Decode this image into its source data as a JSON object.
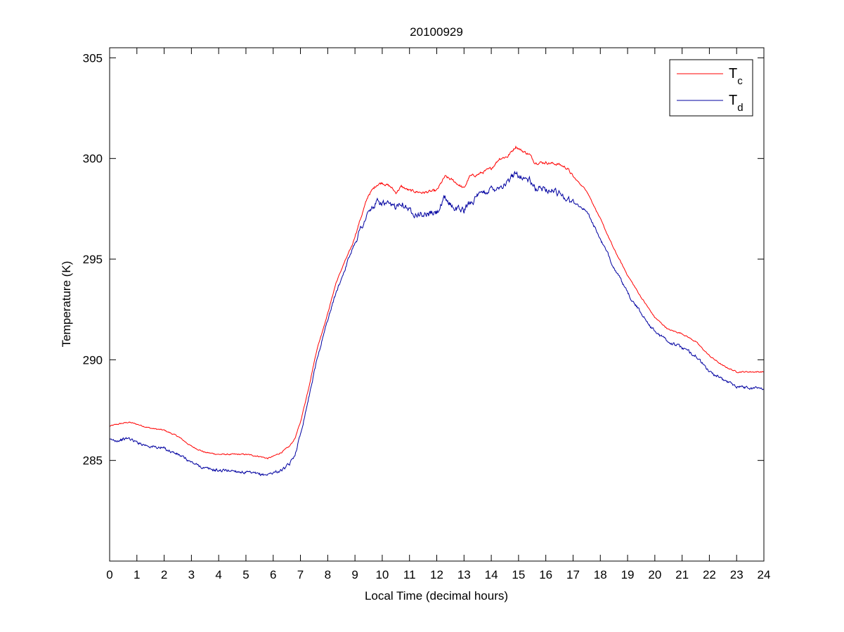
{
  "chart_data": {
    "type": "line",
    "title": "20100929",
    "xlabel": "Local Time (decimal hours)",
    "ylabel": "Temperature (K)",
    "xlim": [
      0,
      24
    ],
    "ylim": [
      280,
      305.5
    ],
    "xticks": [
      0,
      1,
      2,
      3,
      4,
      5,
      6,
      7,
      8,
      9,
      10,
      11,
      12,
      13,
      14,
      15,
      16,
      17,
      18,
      19,
      20,
      21,
      22,
      23,
      24
    ],
    "yticks": [
      285,
      290,
      295,
      300,
      305
    ],
    "grid": false,
    "legend_position": "top-right",
    "series": [
      {
        "name": "Tc",
        "name_base": "T",
        "name_sub": "c",
        "color": "#ff0000",
        "noise": 0.05,
        "x": [
          0,
          0.3,
          0.7,
          1.0,
          1.5,
          2.0,
          2.5,
          3.0,
          3.5,
          4.0,
          4.5,
          5.0,
          5.5,
          5.8,
          6.0,
          6.3,
          6.6,
          6.8,
          7.0,
          7.3,
          7.6,
          8.0,
          8.3,
          8.6,
          8.9,
          9.2,
          9.5,
          9.8,
          10.0,
          10.3,
          10.5,
          10.7,
          11.0,
          11.5,
          12.0,
          12.3,
          12.6,
          13.0,
          13.2,
          13.5,
          14.0,
          14.3,
          14.6,
          14.9,
          15.1,
          15.4,
          15.6,
          16.0,
          16.5,
          16.8,
          17.0,
          17.5,
          18.0,
          18.5,
          19.0,
          19.5,
          20.0,
          20.5,
          21.0,
          21.5,
          22.0,
          22.5,
          23.0,
          23.5,
          24.0
        ],
        "y": [
          286.7,
          286.8,
          286.9,
          286.8,
          286.6,
          286.5,
          286.2,
          285.7,
          285.4,
          285.3,
          285.3,
          285.3,
          285.2,
          285.1,
          285.2,
          285.4,
          285.7,
          286.1,
          286.9,
          288.6,
          290.5,
          292.3,
          293.8,
          294.8,
          295.7,
          297.0,
          298.2,
          298.7,
          298.8,
          298.6,
          298.3,
          298.6,
          298.4,
          298.3,
          298.4,
          299.1,
          298.9,
          298.5,
          299.1,
          299.2,
          299.5,
          300.0,
          300.1,
          300.6,
          300.4,
          300.2,
          299.8,
          299.8,
          299.7,
          299.5,
          299.1,
          298.4,
          297.0,
          295.5,
          294.2,
          293.1,
          292.1,
          291.5,
          291.3,
          290.9,
          290.2,
          289.7,
          289.4,
          289.4,
          289.4
        ]
      },
      {
        "name": "Td",
        "name_base": "T",
        "name_sub": "d",
        "color": "#0000a0",
        "noise": 0.12,
        "x": [
          0,
          0.3,
          0.7,
          1.0,
          1.5,
          2.0,
          2.5,
          3.0,
          3.5,
          4.0,
          4.5,
          5.0,
          5.5,
          5.8,
          6.0,
          6.3,
          6.6,
          6.8,
          7.0,
          7.3,
          7.6,
          8.0,
          8.3,
          8.6,
          8.9,
          9.2,
          9.5,
          9.8,
          10.0,
          10.3,
          10.5,
          10.7,
          11.0,
          11.5,
          12.0,
          12.3,
          12.6,
          13.0,
          13.2,
          13.5,
          14.0,
          14.3,
          14.6,
          14.9,
          15.1,
          15.4,
          15.6,
          16.0,
          16.5,
          16.8,
          17.0,
          17.5,
          18.0,
          18.5,
          19.0,
          19.5,
          20.0,
          20.5,
          21.0,
          21.5,
          22.0,
          22.5,
          23.0,
          23.5,
          24.0
        ],
        "y": [
          286.0,
          286.0,
          286.1,
          285.9,
          285.7,
          285.6,
          285.3,
          284.9,
          284.6,
          284.5,
          284.5,
          284.4,
          284.3,
          284.3,
          284.4,
          284.5,
          284.8,
          285.3,
          286.3,
          288.1,
          290.0,
          292.0,
          293.3,
          294.4,
          295.5,
          296.5,
          297.3,
          297.8,
          297.8,
          297.6,
          297.6,
          297.9,
          297.4,
          297.2,
          297.3,
          298.0,
          297.6,
          297.4,
          297.8,
          298.1,
          298.5,
          298.6,
          298.8,
          299.3,
          299.1,
          298.9,
          298.5,
          298.5,
          298.3,
          298.0,
          297.8,
          297.4,
          296.0,
          294.6,
          293.3,
          292.3,
          291.4,
          290.9,
          290.6,
          290.2,
          289.4,
          289.0,
          288.7,
          288.6,
          288.6
        ]
      }
    ]
  }
}
